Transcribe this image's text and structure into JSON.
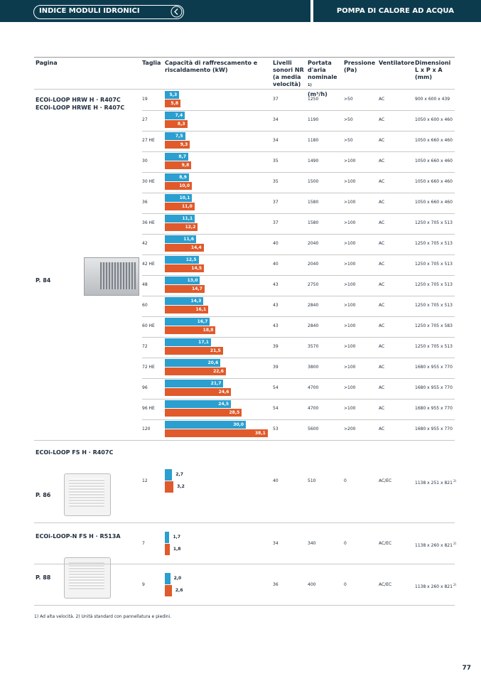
{
  "header": {
    "left": "INDICE MODULI IDRONICI",
    "right": "POMPA DI CALORE AD ACQUA"
  },
  "table": {
    "columns": [
      "Pagina",
      "Taglia",
      "Capacità di raffrescamento e riscaldamento (kW)",
      "Livelli sonori NR (a media velocità)",
      "Portata d'aria nominale",
      "Pressione (Pa)",
      "Ventilatore",
      "Dimensioni L x P x A (mm)"
    ],
    "airflow_note": "1)",
    "airflow_unit": "(m³/h)",
    "groups": [
      {
        "names": [
          "ECOi-LOOP HRW H · R407C",
          "ECOi-LOOP HRWE H · R407C"
        ],
        "page": "P. 84",
        "rows": [
          {
            "size": "19",
            "cooling": 5.3,
            "cooling_label": "5,3",
            "heating": 5.8,
            "heating_label": "5,8",
            "noise": 37,
            "airflow": 1250,
            "pressure": ">50",
            "fan": "AC",
            "dimensions": "900 x 600 x 439"
          },
          {
            "size": "27",
            "cooling": 7.4,
            "cooling_label": "7,4",
            "heating": 8.3,
            "heating_label": "8,3",
            "noise": 34,
            "airflow": 1190,
            "pressure": ">50",
            "fan": "AC",
            "dimensions": "1050 x 600 x 460"
          },
          {
            "size": "27 HE",
            "cooling": 7.5,
            "cooling_label": "7,5",
            "heating": 9.3,
            "heating_label": "9,3",
            "noise": 34,
            "airflow": 1180,
            "pressure": ">50",
            "fan": "AC",
            "dimensions": "1050 x 660 x 460"
          },
          {
            "size": "30",
            "cooling": 8.7,
            "cooling_label": "8,7",
            "heating": 9.8,
            "heating_label": "9,8",
            "noise": 35,
            "airflow": 1490,
            "pressure": ">100",
            "fan": "AC",
            "dimensions": "1050 x 660 x 460"
          },
          {
            "size": "30 HE",
            "cooling": 8.9,
            "cooling_label": "8,9",
            "heating": 10.0,
            "heating_label": "10,0",
            "noise": 35,
            "airflow": 1500,
            "pressure": ">100",
            "fan": "AC",
            "dimensions": "1050 x 660 x 460"
          },
          {
            "size": "36",
            "cooling": 10.1,
            "cooling_label": "10,1",
            "heating": 11.0,
            "heating_label": "11,0",
            "noise": 37,
            "airflow": 1580,
            "pressure": ">100",
            "fan": "AC",
            "dimensions": "1050 x 660 x 460"
          },
          {
            "size": "36 HE",
            "cooling": 11.1,
            "cooling_label": "11,1",
            "heating": 12.2,
            "heating_label": "12,2",
            "noise": 37,
            "airflow": 1580,
            "pressure": ">100",
            "fan": "AC",
            "dimensions": "1250 x 705 x 513"
          },
          {
            "size": "42",
            "cooling": 11.6,
            "cooling_label": "11,6",
            "heating": 14.4,
            "heating_label": "14,4",
            "noise": 40,
            "airflow": 2040,
            "pressure": ">100",
            "fan": "AC",
            "dimensions": "1250 x 705 x 513"
          },
          {
            "size": "42 HE",
            "cooling": 12.5,
            "cooling_label": "12,5",
            "heating": 14.5,
            "heating_label": "14,5",
            "noise": 40,
            "airflow": 2040,
            "pressure": ">100",
            "fan": "AC",
            "dimensions": "1250 x 705 x 513"
          },
          {
            "size": "48",
            "cooling": 13.0,
            "cooling_label": "13,0",
            "heating": 14.7,
            "heating_label": "14,7",
            "noise": 43,
            "airflow": 2750,
            "pressure": ">100",
            "fan": "AC",
            "dimensions": "1250 x 705 x 513"
          },
          {
            "size": "60",
            "cooling": 14.3,
            "cooling_label": "14,3",
            "heating": 16.1,
            "heating_label": "16,1",
            "noise": 43,
            "airflow": 2840,
            "pressure": ">100",
            "fan": "AC",
            "dimensions": "1250 x 705 x 513"
          },
          {
            "size": "60 HE",
            "cooling": 16.7,
            "cooling_label": "16,7",
            "heating": 18.8,
            "heating_label": "18,8",
            "noise": 43,
            "airflow": 2840,
            "pressure": ">100",
            "fan": "AC",
            "dimensions": "1250 x 705 x 583"
          },
          {
            "size": "72",
            "cooling": 17.1,
            "cooling_label": "17,1",
            "heating": 21.5,
            "heating_label": "21,5",
            "noise": 39,
            "airflow": 3570,
            "pressure": ">100",
            "fan": "AC",
            "dimensions": "1250 x 705 x 513"
          },
          {
            "size": "72 HE",
            "cooling": 20.6,
            "cooling_label": "20,6",
            "heating": 22.6,
            "heating_label": "22,6",
            "noise": 39,
            "airflow": 3800,
            "pressure": ">100",
            "fan": "AC",
            "dimensions": "1680 x 955 x 770"
          },
          {
            "size": "96",
            "cooling": 21.7,
            "cooling_label": "21,7",
            "heating": 24.6,
            "heating_label": "24,6",
            "noise": 54,
            "airflow": 4700,
            "pressure": ">100",
            "fan": "AC",
            "dimensions": "1680 x 955 x 770"
          },
          {
            "size": "96 HE",
            "cooling": 24.5,
            "cooling_label": "24,5",
            "heating": 28.5,
            "heating_label": "28,5",
            "noise": 54,
            "airflow": 4700,
            "pressure": ">100",
            "fan": "AC",
            "dimensions": "1680 x 955 x 770"
          },
          {
            "size": "120",
            "cooling": 30.0,
            "cooling_label": "30,0",
            "heating": 38.1,
            "heating_label": "38,1",
            "noise": 53,
            "airflow": 5600,
            "pressure": ">200",
            "fan": "AC",
            "dimensions": "1680 x 955 x 770"
          }
        ]
      },
      {
        "names": [
          "ECOi-LOOP FS H · R407C"
        ],
        "page": "P. 86",
        "rows": [
          {
            "size": "12",
            "cooling": 2.7,
            "cooling_label": "2,7",
            "heating": 3.2,
            "heating_label": "3,2",
            "noise": 40,
            "airflow": 510,
            "pressure": "0",
            "fan": "AC/EC",
            "dimensions": "1138 x 251 x 821",
            "dim_note": "2)"
          }
        ]
      },
      {
        "names": [
          "ECOi-LOOP-N FS H · R513A"
        ],
        "page": "P. 88",
        "rows": [
          {
            "size": "7",
            "cooling": 1.7,
            "cooling_label": "1,7",
            "heating": 1.8,
            "heating_label": "1,8",
            "noise": 34,
            "airflow": 340,
            "pressure": "0",
            "fan": "AC/EC",
            "dimensions": "1138 x 260 x 821",
            "dim_note": "2)"
          },
          {
            "size": "9",
            "cooling": 2.0,
            "cooling_label": "2,0",
            "heating": 2.6,
            "heating_label": "2,6",
            "noise": 36,
            "airflow": 400,
            "pressure": "0",
            "fan": "AC/EC",
            "dimensions": "1138 x 260 x 821",
            "dim_note": "2)"
          }
        ]
      }
    ]
  },
  "footnote": "1) Ad alta velocità. 2) Unità standard con pannellatura e piedini.",
  "page_number": "77"
}
